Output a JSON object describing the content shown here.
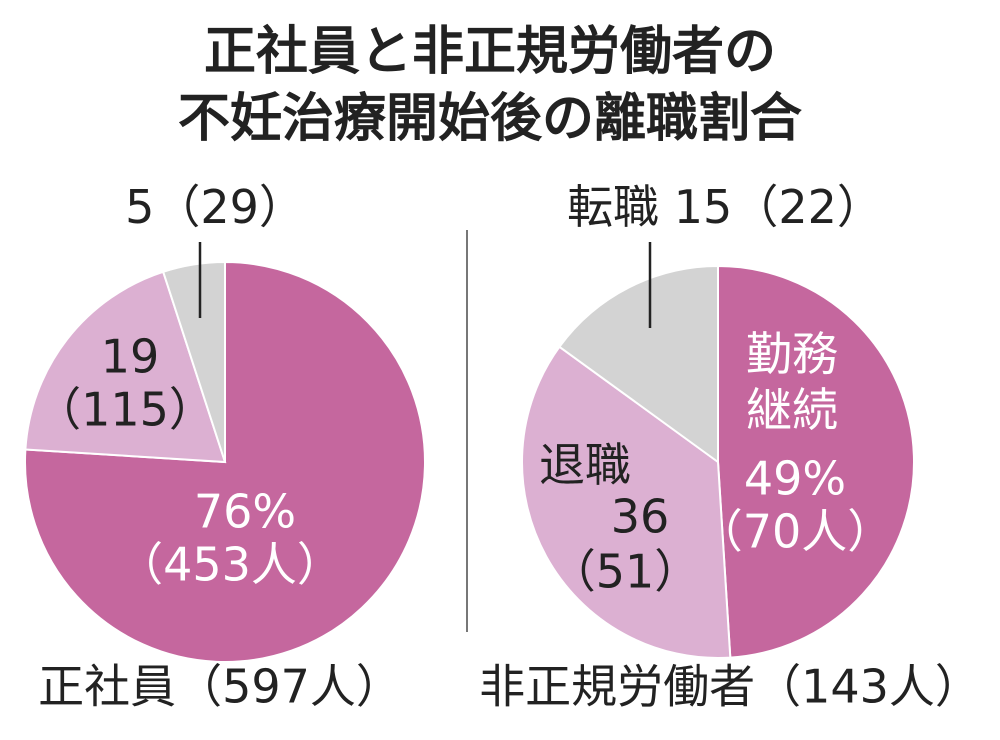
{
  "title": [
    "正社員と非正規労働者の",
    "不妊治療開始後の離職割合"
  ],
  "chart_data": [
    {
      "type": "pie",
      "label": "正社員（597人）",
      "values": [
        76,
        19,
        5
      ],
      "value_labels": [
        "76%",
        "19",
        "5"
      ],
      "count_labels": [
        "（453人）",
        "（115）",
        "（29）"
      ],
      "colors": [
        "#c5679e",
        "#dcb0d2",
        "#d3d3d3"
      ]
    },
    {
      "type": "pie",
      "label": "非正規労働者（143人）",
      "categories": [
        "勤務継続",
        "退職",
        "転職"
      ],
      "values": [
        49,
        36,
        15
      ],
      "value_labels": [
        "49%",
        "36",
        "15"
      ],
      "count_labels": [
        "（70人）",
        "（51）",
        "（22）"
      ],
      "colors": [
        "#c5679e",
        "#dcb0d2",
        "#d3d3d3"
      ]
    }
  ]
}
